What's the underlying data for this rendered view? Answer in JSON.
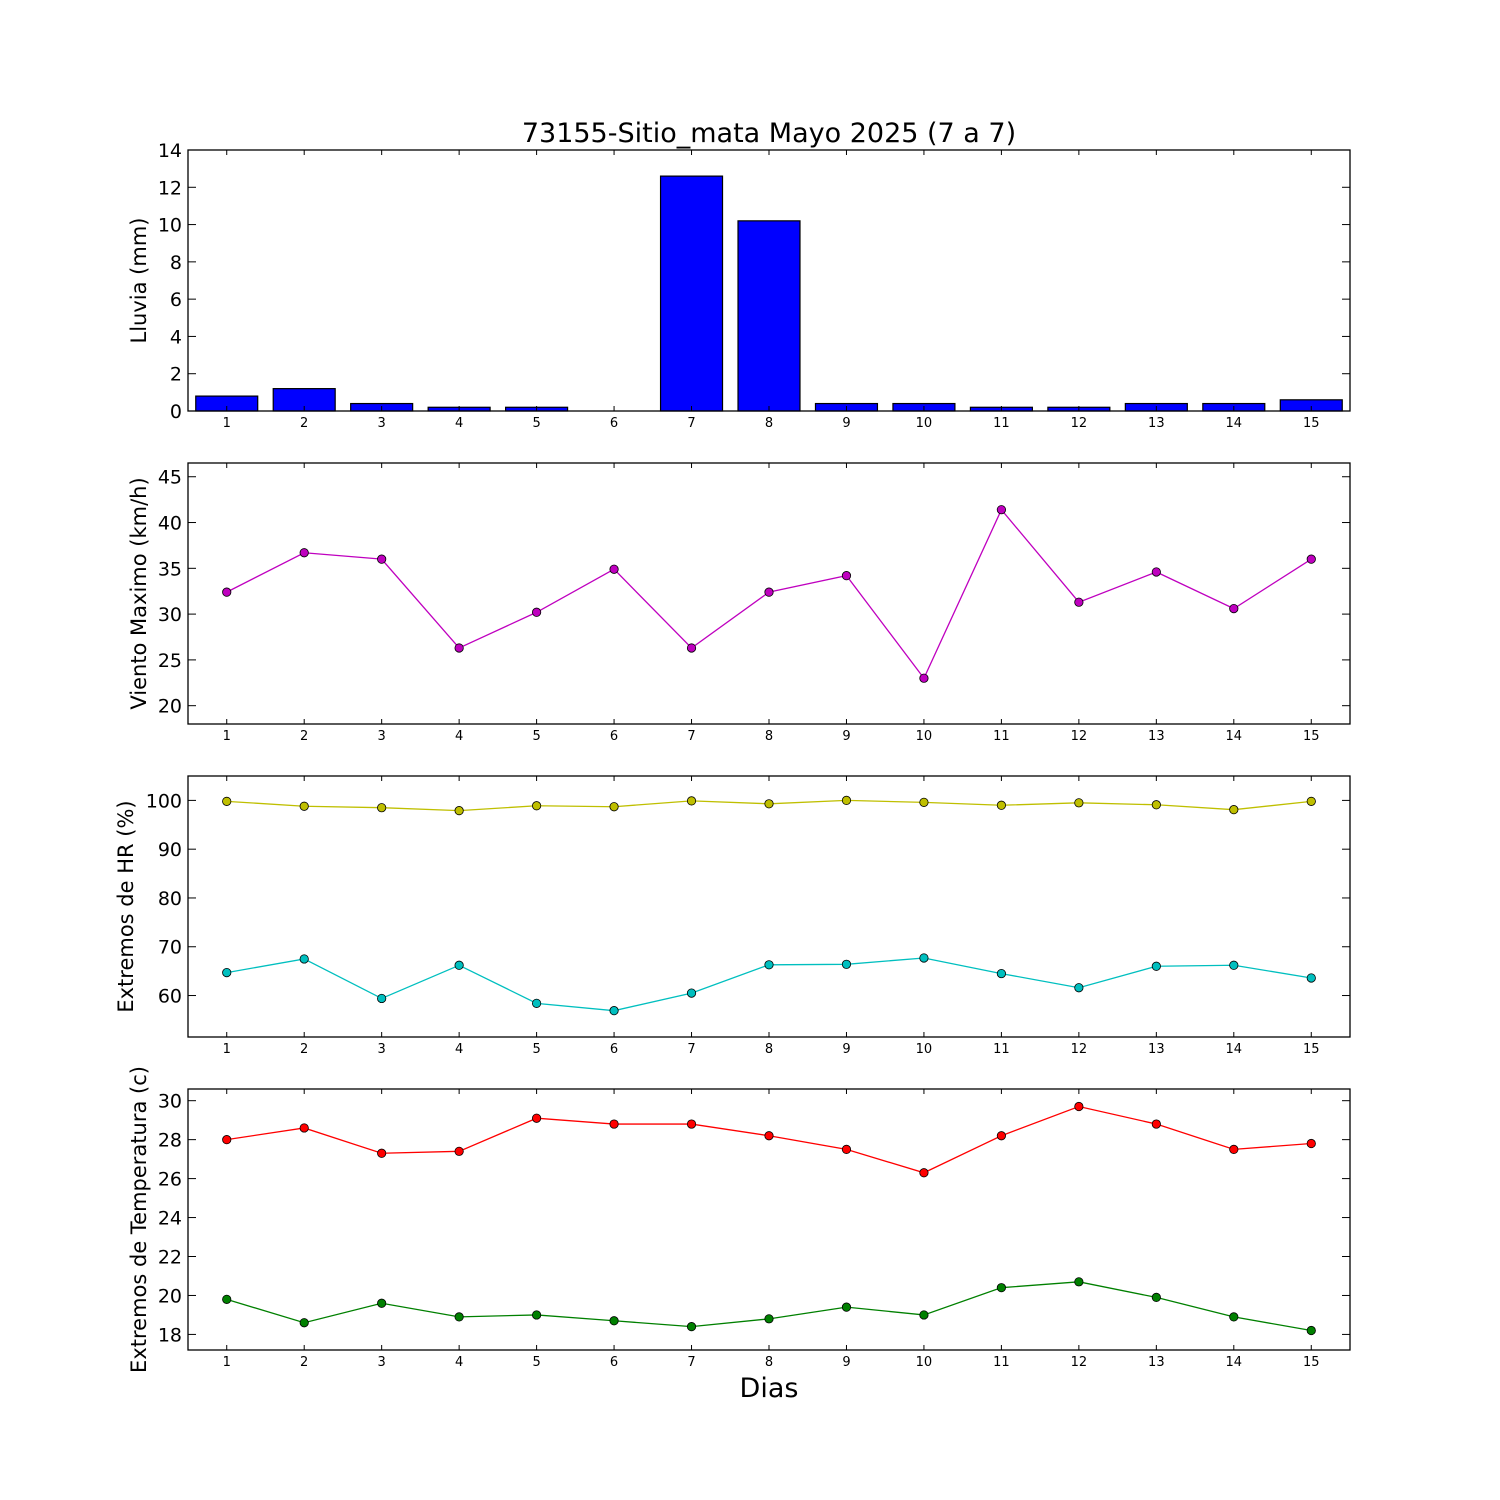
{
  "chart_data": {
    "title": "73155-Sitio_mata Mayo 2025  (7 a 7)",
    "xlabel": "Dias",
    "x": [
      1,
      2,
      3,
      4,
      5,
      6,
      7,
      8,
      9,
      10,
      11,
      12,
      13,
      14,
      15
    ],
    "panels": [
      {
        "type": "bar",
        "ylabel": "Lluvia (mm)",
        "ylim": [
          0,
          14
        ],
        "yticks": [
          0,
          2,
          4,
          6,
          8,
          10,
          12,
          14
        ],
        "color": "#0000ff",
        "series": [
          {
            "values": [
              0.8,
              1.2,
              0.4,
              0.2,
              0.2,
              0.0,
              12.6,
              10.2,
              0.4,
              0.4,
              0.2,
              0.2,
              0.4,
              0.4,
              0.6
            ]
          }
        ]
      },
      {
        "type": "line",
        "ylabel": "Viento Maximo (km/h)",
        "ylim": [
          18,
          46.5
        ],
        "yticks": [
          20,
          25,
          30,
          35,
          40,
          45
        ],
        "series": [
          {
            "color": "#bf00bf",
            "values": [
              32.4,
              36.7,
              36.0,
              26.3,
              30.2,
              34.9,
              26.3,
              32.4,
              34.2,
              23.0,
              41.4,
              31.3,
              34.6,
              30.6,
              36.0
            ]
          }
        ]
      },
      {
        "type": "line",
        "ylabel": "Extremos de HR (%)",
        "ylim": [
          51.5,
          105
        ],
        "yticks": [
          60,
          70,
          80,
          90,
          100
        ],
        "series": [
          {
            "color": "#bfbf00",
            "values": [
              99.8,
              98.8,
              98.5,
              97.9,
              98.9,
              98.7,
              99.9,
              99.3,
              100.0,
              99.6,
              99.0,
              99.5,
              99.1,
              98.1,
              99.8
            ]
          },
          {
            "color": "#00bfbf",
            "values": [
              64.7,
              67.5,
              59.4,
              66.2,
              58.4,
              56.9,
              60.5,
              66.3,
              66.4,
              67.7,
              64.5,
              61.6,
              66.0,
              66.2,
              63.6
            ]
          }
        ]
      },
      {
        "type": "line",
        "ylabel": "Extremos de Temperatura (c)",
        "ylim": [
          17.2,
          30.6
        ],
        "yticks": [
          18,
          20,
          22,
          24,
          26,
          28,
          30
        ],
        "series": [
          {
            "color": "#ff0000",
            "values": [
              28.0,
              28.6,
              27.3,
              27.4,
              29.1,
              28.8,
              28.8,
              28.2,
              27.5,
              26.3,
              28.2,
              29.7,
              28.8,
              27.5,
              27.8
            ]
          },
          {
            "color": "#008000",
            "values": [
              19.8,
              18.6,
              19.6,
              18.9,
              19.0,
              18.7,
              18.4,
              18.8,
              19.4,
              19.0,
              20.4,
              20.7,
              19.9,
              18.9,
              18.2
            ]
          }
        ]
      }
    ]
  }
}
